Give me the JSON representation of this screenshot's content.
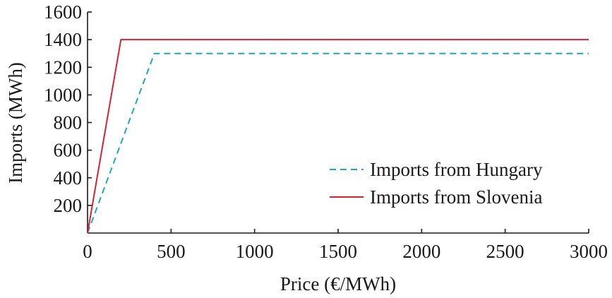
{
  "chart_data": {
    "type": "line",
    "xlabel": "Price (€/MWh)",
    "ylabel": "Imports (MWh)",
    "xlim": [
      0,
      3000
    ],
    "ylim": [
      0,
      1600
    ],
    "xticks": [
      "0",
      "500",
      "1000",
      "1500",
      "2000",
      "2500",
      "3000"
    ],
    "yticks": [
      "200",
      "400",
      "600",
      "800",
      "1000",
      "1200",
      "1400",
      "1600"
    ],
    "grid": false,
    "legend_position": "lower-right",
    "series": [
      {
        "name": "Imports from Hungary",
        "color": "#1fa5c8",
        "style": "dashed",
        "x": [
          0,
          400,
          3000
        ],
        "y": [
          0,
          1300,
          1300
        ]
      },
      {
        "name": "Imports from Slovenia",
        "color": "#d62235",
        "style": "solid",
        "x": [
          0,
          200,
          3000
        ],
        "y": [
          0,
          1400,
          1400
        ]
      }
    ]
  }
}
